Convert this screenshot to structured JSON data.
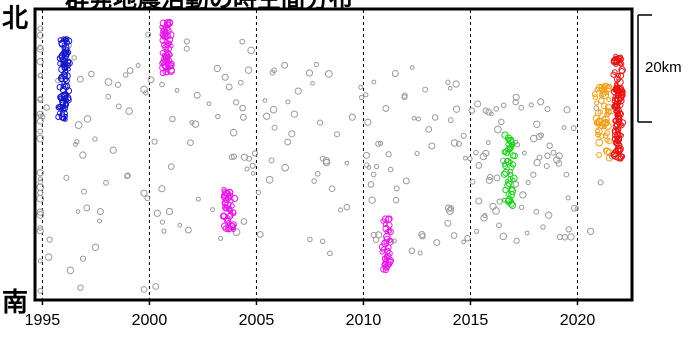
{
  "labels": {
    "north": "北",
    "south": "南",
    "title_fragment": "群発地震活動の時空間分布"
  },
  "scale_bar": {
    "label": "20km"
  },
  "colors": {
    "background": "#ffffff",
    "axis": "#000000",
    "gray_events": "#9a9a9a",
    "seq_1995": "#1414c8",
    "seq_2000": "#e619e6",
    "seq_2003": "#e619e6",
    "seq_2011": "#e619e6",
    "seq_2016": "#19d219",
    "seq_2021_south": "#f0a019",
    "seq_2021_north": "#e61414"
  },
  "chart_data": {
    "type": "scatter",
    "title": "",
    "xlabel": "",
    "ylabel": "",
    "x_ticks": [
      "1995",
      "2000",
      "2005",
      "2010",
      "2015",
      "2020"
    ],
    "xlim": [
      1994.7,
      2022.5
    ],
    "ylim": [
      0,
      100
    ],
    "grid": "vertical dashed lines every 5 years",
    "series": [
      {
        "color_key": "gray_events",
        "x_center": 1995.5,
        "x_spread": 7.0,
        "y_min": 2,
        "y_max": 94,
        "count": 60
      },
      {
        "color_key": "gray_events",
        "x_center": 2002.0,
        "x_spread": 6.0,
        "y_min": 20,
        "y_max": 92,
        "count": 60
      },
      {
        "color_key": "gray_events",
        "x_center": 2007.5,
        "x_spread": 5.0,
        "y_min": 20,
        "y_max": 85,
        "count": 40
      },
      {
        "color_key": "gray_events",
        "x_center": 2012.5,
        "x_spread": 5.0,
        "y_min": 15,
        "y_max": 80,
        "count": 50
      },
      {
        "color_key": "gray_events",
        "x_center": 2017.5,
        "x_spread": 4.5,
        "y_min": 20,
        "y_max": 70,
        "count": 80
      },
      {
        "color_key": "seq_1995",
        "x_center": 1996.0,
        "x_spread": 0.3,
        "y_min": 62,
        "y_max": 90,
        "count": 90
      },
      {
        "color_key": "seq_2000",
        "x_center": 2000.8,
        "x_spread": 0.3,
        "y_min": 78,
        "y_max": 96,
        "count": 70
      },
      {
        "color_key": "seq_2003",
        "x_center": 2003.7,
        "x_spread": 0.35,
        "y_min": 24,
        "y_max": 38,
        "count": 45
      },
      {
        "color_key": "seq_2011",
        "x_center": 2011.1,
        "x_spread": 0.3,
        "y_min": 10,
        "y_max": 28,
        "count": 40
      },
      {
        "color_key": "seq_2016",
        "x_center": 2016.8,
        "x_spread": 0.3,
        "y_min": 32,
        "y_max": 58,
        "count": 45
      },
      {
        "color_key": "seq_2021_south",
        "x_center": 2021.2,
        "x_spread": 0.45,
        "y_min": 48,
        "y_max": 74,
        "count": 60
      },
      {
        "color_key": "seq_2021_north",
        "x_center": 2021.9,
        "x_spread": 0.25,
        "y_min": 48,
        "y_max": 84,
        "count": 120
      }
    ]
  }
}
